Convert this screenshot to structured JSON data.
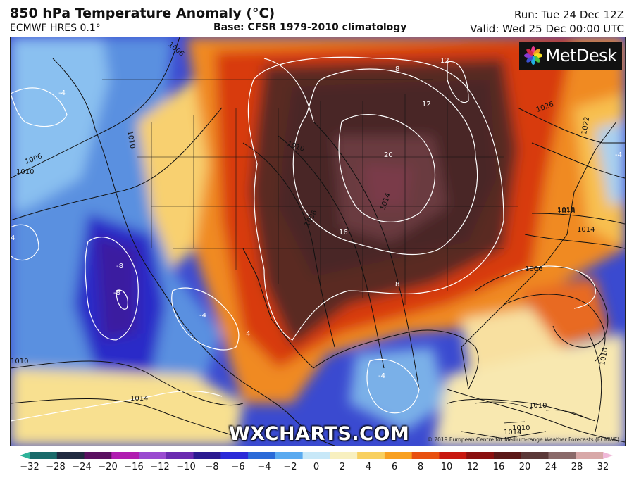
{
  "header": {
    "title": "850 hPa Temperature Anomaly (°C)",
    "model": "ECMWF HRES 0.1°",
    "base": "Base: CFSR 1979-2010 climatology",
    "run": "Run: Tue 24 Dec 12Z",
    "valid": "Valid: Wed 25 Dec 00:00 UTC"
  },
  "logo": {
    "text": "MetDesk",
    "icon": "metdesk-flower-icon"
  },
  "watermark": "WXCHARTS.COM",
  "credit": "© 2019 European Centre for Medium-range Weather Forecasts (ECMWF)",
  "map": {
    "region": "North America",
    "pressure_contours": [
      "1006",
      "1010",
      "1006",
      "1010",
      "1014",
      "1018",
      "1010",
      "1014",
      "1010",
      "1026",
      "1022",
      "1018",
      "1014",
      "1006",
      "1010",
      "1010",
      "1010",
      "1006",
      "1014"
    ],
    "anomaly_contours": [
      "-4",
      "-8",
      "-8",
      "-4",
      "4",
      "8",
      "12",
      "12",
      "20",
      "16",
      "8",
      "-4",
      "-4",
      "4"
    ]
  },
  "colorbar": {
    "ticks": [
      "−32",
      "−28",
      "−24",
      "−20",
      "−16",
      "−12",
      "−10",
      "−8",
      "−6",
      "−4",
      "−2",
      "0",
      "2",
      "4",
      "6",
      "8",
      "10",
      "12",
      "16",
      "20",
      "24",
      "28",
      "32"
    ],
    "colors": [
      "#2fb39a",
      "#1a6a6a",
      "#202a40",
      "#5a1060",
      "#b01cb0",
      "#9a4ad0",
      "#6a2ab0",
      "#2a1a90",
      "#2a2ad8",
      "#2a6ad8",
      "#5aaaf0",
      "#c8e8f8",
      "#f8f0c0",
      "#f8d060",
      "#f8a020",
      "#e85010",
      "#c81810",
      "#8a1010",
      "#5a1818",
      "#5a3838",
      "#8a6a6a",
      "#d8a8a8",
      "#f0b8d8"
    ]
  }
}
